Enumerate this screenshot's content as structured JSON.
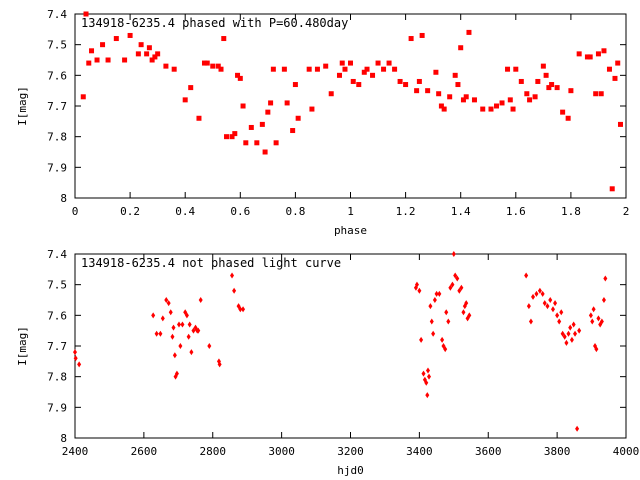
{
  "colors": {
    "points": "#ff0000",
    "axes": "#000000",
    "background": "#ffffff"
  },
  "chart_data": [
    {
      "type": "scatter",
      "title": "134918-6235.4 phased with P=60.480day",
      "xlabel": "phase",
      "ylabel": "I[mag]",
      "xlim": [
        0,
        2
      ],
      "ylim": [
        7.4,
        8.0
      ],
      "y_inverted": true,
      "grid": false,
      "xticks": [
        "0",
        "0.2",
        "0.4",
        "0.6",
        "0.8",
        "1",
        "1.2",
        "1.4",
        "1.6",
        "1.8",
        "2"
      ],
      "xtick_values": [
        0,
        0.2,
        0.4,
        0.6,
        0.8,
        1,
        1.2,
        1.4,
        1.6,
        1.8,
        2
      ],
      "yticks": [
        "7.4",
        "7.5",
        "7.6",
        "7.7",
        "7.8",
        "7.9",
        "8"
      ],
      "ytick_values": [
        7.4,
        7.5,
        7.6,
        7.7,
        7.8,
        7.9,
        8.0
      ],
      "series": [
        {
          "marker": "filled-square",
          "points": [
            [
              0.03,
              7.67
            ],
            [
              0.04,
              7.4
            ],
            [
              0.05,
              7.56
            ],
            [
              0.06,
              7.52
            ],
            [
              0.08,
              7.55
            ],
            [
              0.1,
              7.5
            ],
            [
              0.12,
              7.55
            ],
            [
              0.15,
              7.48
            ],
            [
              0.18,
              7.55
            ],
            [
              0.2,
              7.47
            ],
            [
              0.23,
              7.53
            ],
            [
              0.24,
              7.5
            ],
            [
              0.26,
              7.53
            ],
            [
              0.27,
              7.51
            ],
            [
              0.28,
              7.55
            ],
            [
              0.29,
              7.54
            ],
            [
              0.3,
              7.53
            ],
            [
              0.33,
              7.57
            ],
            [
              0.36,
              7.58
            ],
            [
              0.4,
              7.68
            ],
            [
              0.42,
              7.64
            ],
            [
              0.45,
              7.74
            ],
            [
              0.47,
              7.56
            ],
            [
              0.48,
              7.56
            ],
            [
              0.5,
              7.57
            ],
            [
              0.52,
              7.57
            ],
            [
              0.53,
              7.58
            ],
            [
              0.54,
              7.48
            ],
            [
              0.55,
              7.8
            ],
            [
              0.57,
              7.8
            ],
            [
              0.58,
              7.79
            ],
            [
              0.59,
              7.6
            ],
            [
              0.6,
              7.61
            ],
            [
              0.61,
              7.7
            ],
            [
              0.62,
              7.82
            ],
            [
              0.64,
              7.77
            ],
            [
              0.66,
              7.82
            ],
            [
              0.68,
              7.76
            ],
            [
              0.69,
              7.85
            ],
            [
              0.7,
              7.72
            ],
            [
              0.71,
              7.69
            ],
            [
              0.72,
              7.58
            ],
            [
              0.73,
              7.82
            ],
            [
              0.76,
              7.58
            ],
            [
              0.77,
              7.69
            ],
            [
              0.79,
              7.78
            ],
            [
              0.8,
              7.63
            ],
            [
              0.81,
              7.74
            ],
            [
              0.85,
              7.58
            ],
            [
              0.86,
              7.71
            ],
            [
              0.88,
              7.58
            ],
            [
              0.91,
              7.57
            ],
            [
              0.93,
              7.66
            ],
            [
              0.96,
              7.6
            ],
            [
              0.97,
              7.56
            ],
            [
              0.98,
              7.58
            ],
            [
              1.0,
              7.56
            ],
            [
              1.01,
              7.62
            ],
            [
              1.03,
              7.63
            ],
            [
              1.05,
              7.59
            ],
            [
              1.06,
              7.58
            ],
            [
              1.08,
              7.6
            ],
            [
              1.1,
              7.56
            ],
            [
              1.12,
              7.58
            ],
            [
              1.14,
              7.56
            ],
            [
              1.16,
              7.58
            ],
            [
              1.18,
              7.62
            ],
            [
              1.2,
              7.63
            ],
            [
              1.22,
              7.48
            ],
            [
              1.24,
              7.65
            ],
            [
              1.25,
              7.62
            ],
            [
              1.26,
              7.47
            ],
            [
              1.28,
              7.65
            ],
            [
              1.31,
              7.59
            ],
            [
              1.32,
              7.66
            ],
            [
              1.33,
              7.7
            ],
            [
              1.34,
              7.71
            ],
            [
              1.36,
              7.67
            ],
            [
              1.38,
              7.6
            ],
            [
              1.39,
              7.63
            ],
            [
              1.4,
              7.51
            ],
            [
              1.41,
              7.68
            ],
            [
              1.42,
              7.67
            ],
            [
              1.43,
              7.46
            ],
            [
              1.45,
              7.68
            ],
            [
              1.48,
              7.71
            ],
            [
              1.51,
              7.71
            ],
            [
              1.53,
              7.7
            ],
            [
              1.55,
              7.69
            ],
            [
              1.57,
              7.58
            ],
            [
              1.58,
              7.68
            ],
            [
              1.59,
              7.71
            ],
            [
              1.6,
              7.58
            ],
            [
              1.62,
              7.62
            ],
            [
              1.64,
              7.66
            ],
            [
              1.65,
              7.68
            ],
            [
              1.67,
              7.67
            ],
            [
              1.68,
              7.62
            ],
            [
              1.7,
              7.57
            ],
            [
              1.71,
              7.6
            ],
            [
              1.72,
              7.64
            ],
            [
              1.73,
              7.63
            ],
            [
              1.75,
              7.64
            ],
            [
              1.77,
              7.72
            ],
            [
              1.79,
              7.74
            ],
            [
              1.8,
              7.65
            ],
            [
              1.83,
              7.53
            ],
            [
              1.86,
              7.54
            ],
            [
              1.87,
              7.54
            ],
            [
              1.89,
              7.66
            ],
            [
              1.9,
              7.53
            ],
            [
              1.91,
              7.66
            ],
            [
              1.92,
              7.52
            ],
            [
              1.94,
              7.58
            ],
            [
              1.95,
              7.97
            ],
            [
              1.96,
              7.61
            ],
            [
              1.97,
              7.56
            ],
            [
              1.98,
              7.76
            ]
          ]
        }
      ]
    },
    {
      "type": "scatter",
      "title": "134918-6235.4 not phased light curve",
      "xlabel": "hjd0",
      "ylabel": "I[mag]",
      "xlim": [
        2400,
        4000
      ],
      "ylim": [
        7.4,
        8.0
      ],
      "y_inverted": true,
      "grid": false,
      "xticks": [
        "2400",
        "2600",
        "2800",
        "3000",
        "3200",
        "3400",
        "3600",
        "3800",
        "4000"
      ],
      "xtick_values": [
        2400,
        2600,
        2800,
        3000,
        3200,
        3400,
        3600,
        3800,
        4000
      ],
      "yticks": [
        "7.4",
        "7.5",
        "7.6",
        "7.7",
        "7.8",
        "7.9",
        "8"
      ],
      "ytick_values": [
        7.4,
        7.5,
        7.6,
        7.7,
        7.8,
        7.9,
        8.0
      ],
      "series": [
        {
          "marker": "filled-diamond",
          "points": [
            [
              2400,
              7.72
            ],
            [
              2402,
              7.74
            ],
            [
              2412,
              7.76
            ],
            [
              2627,
              7.6
            ],
            [
              2637,
              7.66
            ],
            [
              2648,
              7.66
            ],
            [
              2655,
              7.61
            ],
            [
              2665,
              7.55
            ],
            [
              2672,
              7.56
            ],
            [
              2678,
              7.59
            ],
            [
              2683,
              7.67
            ],
            [
              2686,
              7.64
            ],
            [
              2690,
              7.73
            ],
            [
              2692,
              7.8
            ],
            [
              2696,
              7.79
            ],
            [
              2702,
              7.63
            ],
            [
              2706,
              7.7
            ],
            [
              2712,
              7.63
            ],
            [
              2720,
              7.59
            ],
            [
              2725,
              7.6
            ],
            [
              2730,
              7.67
            ],
            [
              2733,
              7.63
            ],
            [
              2738,
              7.72
            ],
            [
              2744,
              7.65
            ],
            [
              2750,
              7.64
            ],
            [
              2755,
              7.65
            ],
            [
              2758,
              7.65
            ],
            [
              2765,
              7.55
            ],
            [
              2790,
              7.7
            ],
            [
              2818,
              7.75
            ],
            [
              2820,
              7.76
            ],
            [
              2856,
              7.47
            ],
            [
              2862,
              7.52
            ],
            [
              2875,
              7.57
            ],
            [
              2880,
              7.58
            ],
            [
              2888,
              7.58
            ],
            [
              3390,
              7.51
            ],
            [
              3393,
              7.5
            ],
            [
              3400,
              7.52
            ],
            [
              3405,
              7.68
            ],
            [
              3412,
              7.79
            ],
            [
              3416,
              7.81
            ],
            [
              3420,
              7.82
            ],
            [
              3423,
              7.86
            ],
            [
              3425,
              7.78
            ],
            [
              3428,
              7.8
            ],
            [
              3432,
              7.57
            ],
            [
              3436,
              7.62
            ],
            [
              3440,
              7.66
            ],
            [
              3445,
              7.55
            ],
            [
              3450,
              7.53
            ],
            [
              3458,
              7.53
            ],
            [
              3466,
              7.68
            ],
            [
              3470,
              7.7
            ],
            [
              3475,
              7.71
            ],
            [
              3478,
              7.59
            ],
            [
              3484,
              7.62
            ],
            [
              3490,
              7.51
            ],
            [
              3496,
              7.5
            ],
            [
              3500,
              7.4
            ],
            [
              3504,
              7.47
            ],
            [
              3510,
              7.48
            ],
            [
              3516,
              7.52
            ],
            [
              3522,
              7.51
            ],
            [
              3528,
              7.59
            ],
            [
              3532,
              7.57
            ],
            [
              3536,
              7.56
            ],
            [
              3540,
              7.61
            ],
            [
              3545,
              7.6
            ],
            [
              3710,
              7.47
            ],
            [
              3718,
              7.57
            ],
            [
              3724,
              7.62
            ],
            [
              3730,
              7.54
            ],
            [
              3740,
              7.53
            ],
            [
              3750,
              7.52
            ],
            [
              3758,
              7.53
            ],
            [
              3764,
              7.56
            ],
            [
              3772,
              7.57
            ],
            [
              3780,
              7.55
            ],
            [
              3788,
              7.58
            ],
            [
              3794,
              7.56
            ],
            [
              3800,
              7.6
            ],
            [
              3806,
              7.62
            ],
            [
              3812,
              7.59
            ],
            [
              3816,
              7.66
            ],
            [
              3822,
              7.67
            ],
            [
              3827,
              7.69
            ],
            [
              3833,
              7.66
            ],
            [
              3838,
              7.64
            ],
            [
              3843,
              7.68
            ],
            [
              3848,
              7.63
            ],
            [
              3852,
              7.66
            ],
            [
              3858,
              7.97
            ],
            [
              3864,
              7.65
            ],
            [
              3898,
              7.6
            ],
            [
              3902,
              7.62
            ],
            [
              3906,
              7.58
            ],
            [
              3910,
              7.7
            ],
            [
              3914,
              7.71
            ],
            [
              3920,
              7.61
            ],
            [
              3925,
              7.63
            ],
            [
              3930,
              7.62
            ],
            [
              3936,
              7.55
            ],
            [
              3940,
              7.48
            ]
          ]
        }
      ]
    }
  ]
}
